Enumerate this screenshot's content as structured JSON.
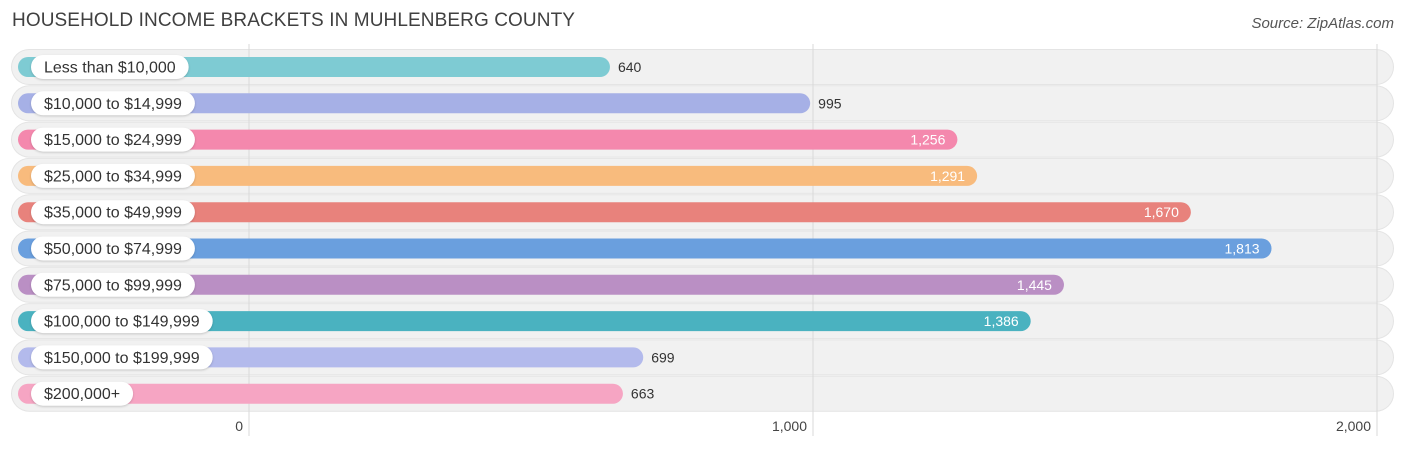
{
  "header": {
    "title": "HOUSEHOLD INCOME BRACKETS IN MUHLENBERG COUNTY",
    "source": "Source: ZipAtlas.com"
  },
  "chart_data": {
    "type": "bar",
    "orientation": "horizontal",
    "title": "HOUSEHOLD INCOME BRACKETS IN MUHLENBERG COUNTY",
    "xlabel": "",
    "ylabel": "",
    "xlim": [
      0,
      2000
    ],
    "ticks": [
      {
        "value": 0,
        "label": "0"
      },
      {
        "value": 1000,
        "label": "1,000"
      },
      {
        "value": 2000,
        "label": "2,000"
      }
    ],
    "grid": true,
    "legend": "none",
    "categories": [
      "Less than $10,000",
      "$10,000 to $14,999",
      "$15,000 to $24,999",
      "$25,000 to $34,999",
      "$35,000 to $49,999",
      "$50,000 to $74,999",
      "$75,000 to $99,999",
      "$100,000 to $149,999",
      "$150,000 to $199,999",
      "$200,000+"
    ],
    "values": [
      640,
      995,
      1256,
      1291,
      1670,
      1813,
      1445,
      1386,
      699,
      663
    ],
    "value_labels": [
      "640",
      "995",
      "1,256",
      "1,291",
      "1,670",
      "1,813",
      "1,445",
      "1,386",
      "699",
      "663"
    ],
    "colors": [
      "#7ecbd3",
      "#a6b0e6",
      "#f488ad",
      "#f8bb7d",
      "#e8827c",
      "#6a9fde",
      "#ba8fc4",
      "#4ab2c0",
      "#b3baec",
      "#f6a5c3"
    ]
  }
}
